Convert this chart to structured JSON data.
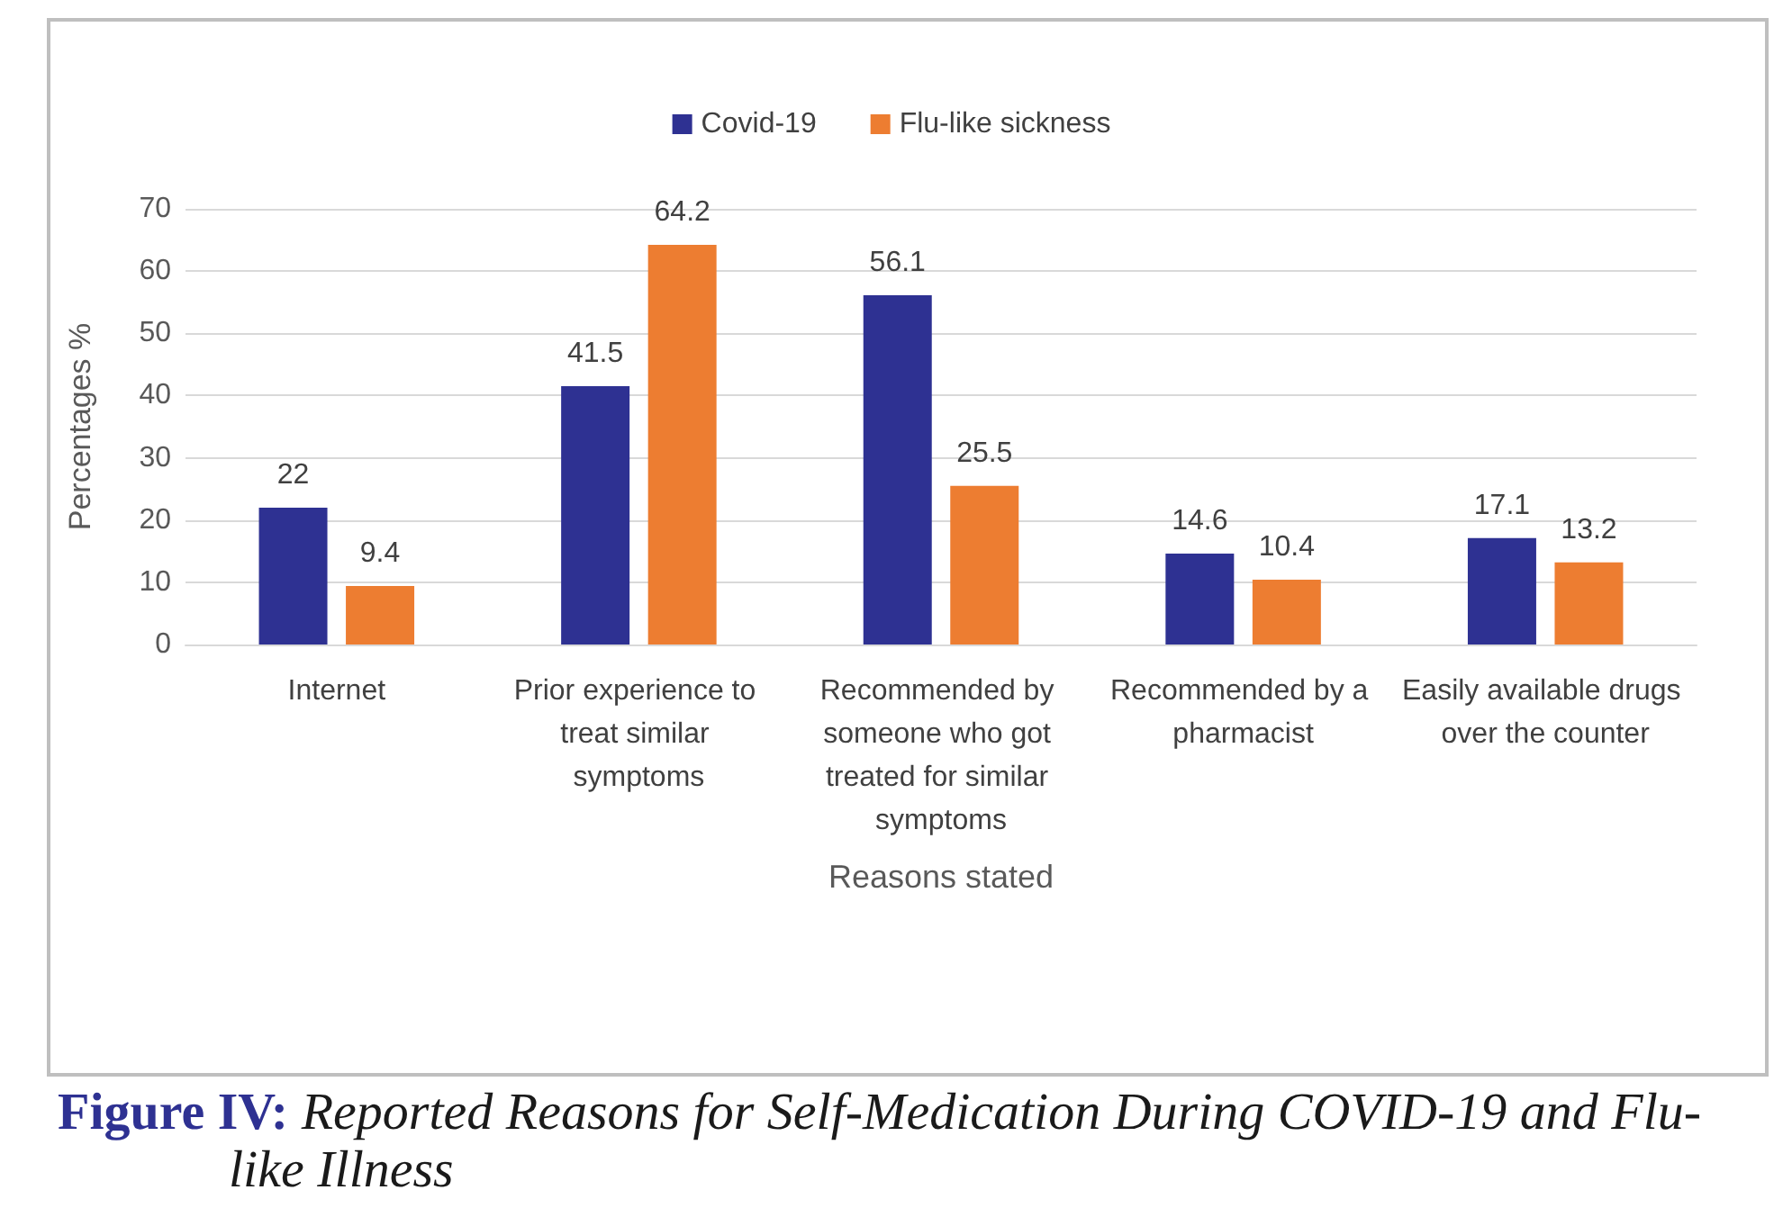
{
  "chart_data": {
    "type": "bar",
    "title": "Figure IV: Reported Reasons for Self-Medication During COVID-19 and Flu-like Illness",
    "xlabel": "Reasons stated",
    "ylabel": "Percentages %",
    "categories": [
      "Internet",
      "Prior experience to treat similar symptoms",
      "Recommended by someone who got treated for similar symptoms",
      "Recommended by a pharmacist",
      "Easily available drugs over the counter"
    ],
    "series": [
      {
        "name": "Covid-19",
        "color": "#2e3192",
        "values": [
          22,
          41.5,
          56.1,
          14.6,
          17.1
        ]
      },
      {
        "name": "Flu-like sickness",
        "color": "#ed7d31",
        "values": [
          9.4,
          64.2,
          25.5,
          10.4,
          13.2
        ]
      }
    ],
    "ylim": [
      0,
      70
    ],
    "yticks": [
      0,
      10,
      20,
      30,
      40,
      50,
      60,
      70
    ],
    "grid": "y",
    "legend": "top",
    "data_labels": true
  }
}
